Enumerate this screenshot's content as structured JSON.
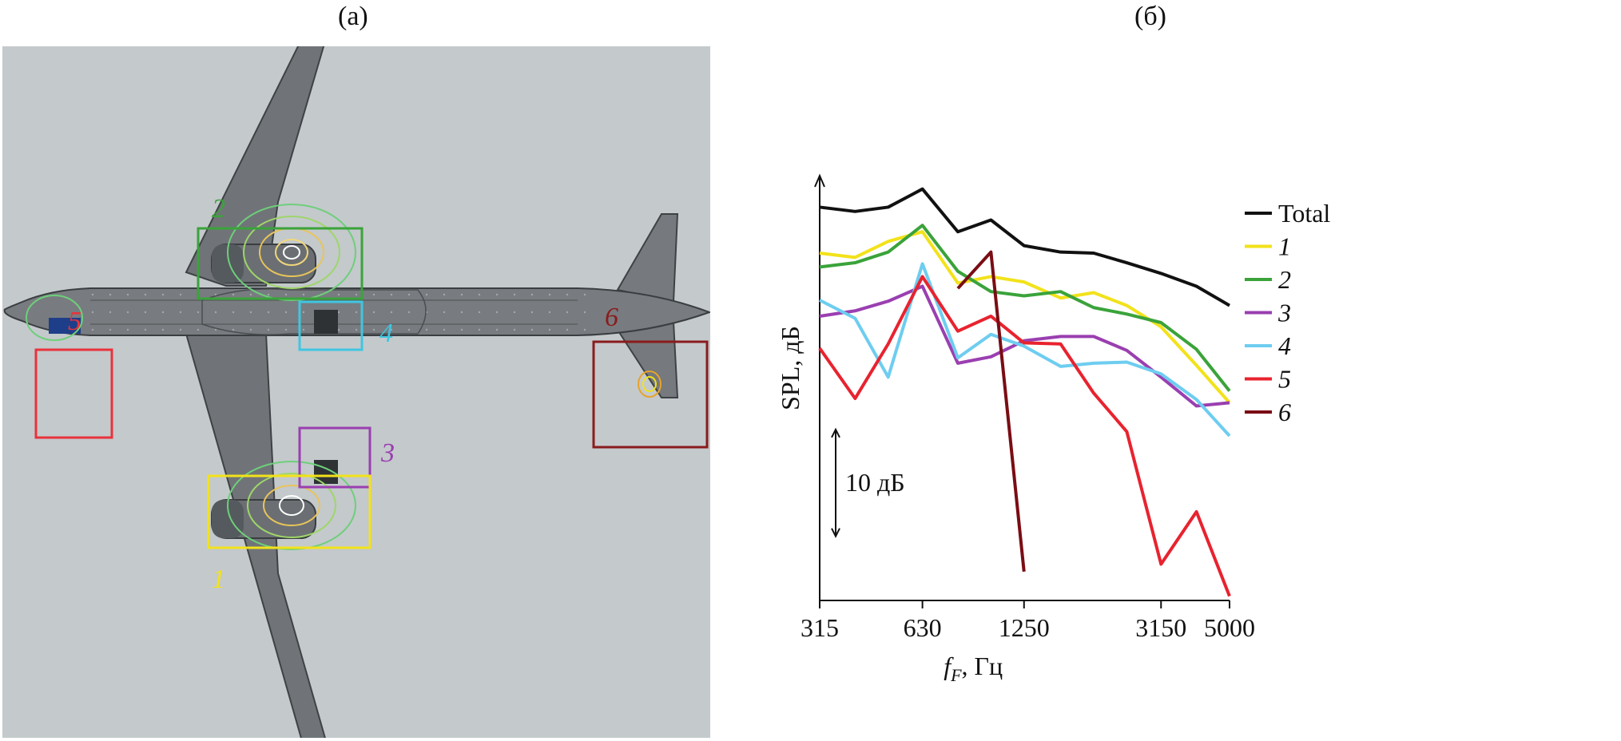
{
  "panels": {
    "a_label": "(а)",
    "b_label": "(б)"
  },
  "map": {
    "zones": [
      {
        "id": "5",
        "label": "5",
        "color": "#e8323c"
      },
      {
        "id": "2",
        "label": "2",
        "color": "#3aa33a"
      },
      {
        "id": "4",
        "label": "4",
        "color": "#3fc6e0"
      },
      {
        "id": "6",
        "label": "6",
        "color": "#8a1c1c"
      },
      {
        "id": "3",
        "label": "3",
        "color": "#9a3fb0"
      },
      {
        "id": "1",
        "label": "1",
        "color": "#f2e21a"
      }
    ]
  },
  "chart_data": {
    "type": "line",
    "xlabel": "f_F, Гц",
    "xlabel_main": "f",
    "xlabel_sub": "F",
    "xlabel_unit": ", Гц",
    "ylabel": "SPL, дБ",
    "scale_bar_label": "10 дБ",
    "x_scale": "log",
    "xlim": [
      315,
      5000
    ],
    "x_ticks": [
      315,
      630,
      1250,
      3150,
      5000
    ],
    "x_tick_labels": [
      "315",
      "630",
      "1250",
      "3150",
      "5000"
    ],
    "ylim": [
      0,
      39
    ],
    "y_unit_note": "relative dB (ticks not printed); scale bar = 10 dB",
    "legend_position": "right",
    "x": [
      315,
      400,
      500,
      630,
      800,
      1000,
      1250,
      1600,
      2000,
      2500,
      3150,
      4000,
      5000
    ],
    "series": [
      {
        "name": "Total",
        "italic": false,
        "color": "#111111",
        "values": [
          36.8,
          36.4,
          36.8,
          38.5,
          34.5,
          35.6,
          33.2,
          32.6,
          32.5,
          31.6,
          30.6,
          29.4,
          27.6
        ]
      },
      {
        "name": "1",
        "italic": true,
        "color": "#f2e21a",
        "values": [
          32.5,
          32.1,
          33.6,
          34.5,
          29.7,
          30.3,
          29.8,
          28.3,
          28.8,
          27.6,
          25.6,
          22.0,
          18.5
        ]
      },
      {
        "name": "2",
        "italic": true,
        "color": "#3aa33a",
        "values": [
          31.2,
          31.6,
          32.6,
          35.1,
          30.8,
          28.9,
          28.5,
          28.9,
          27.4,
          26.8,
          26.0,
          23.5,
          19.6
        ]
      },
      {
        "name": "3",
        "italic": true,
        "color": "#9a3fb0",
        "values": [
          26.6,
          27.1,
          28.0,
          29.4,
          22.2,
          22.8,
          24.3,
          24.7,
          24.7,
          23.4,
          20.9,
          18.2,
          18.5
        ]
      },
      {
        "name": "4",
        "italic": true,
        "color": "#6ecdf0",
        "values": [
          28.1,
          26.4,
          20.9,
          31.5,
          22.7,
          24.9,
          23.8,
          21.9,
          22.2,
          22.3,
          21.2,
          18.8,
          15.4
        ]
      },
      {
        "name": "5",
        "italic": true,
        "color": "#e8232f",
        "values": [
          23.6,
          18.9,
          24.0,
          30.3,
          25.2,
          26.6,
          24.1,
          24.0,
          19.4,
          15.8,
          3.4,
          8.3,
          0.4
        ]
      },
      {
        "name": "6",
        "italic": true,
        "color": "#7a0d14",
        "values": [
          null,
          null,
          null,
          null,
          29.2,
          32.6,
          2.7,
          null,
          null,
          null,
          null,
          null,
          null
        ]
      }
    ]
  }
}
